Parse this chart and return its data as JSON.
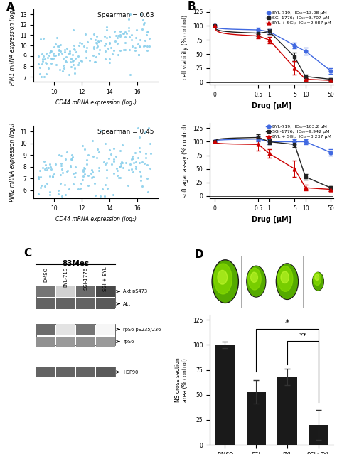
{
  "panel_A_top": {
    "title": "Spearman = 0.63",
    "xlabel": "CD44 mRNA expression (log₂)",
    "ylabel": "PIM1 mRNA expression (log₂)",
    "xlim": [
      8.5,
      17.5
    ],
    "ylim": [
      6.5,
      13.5
    ],
    "xticks": [
      10,
      12,
      14,
      16
    ],
    "yticks": [
      7,
      8,
      9,
      10,
      11,
      12,
      13
    ],
    "dot_color": "#87CEEB",
    "seed": 42,
    "n_points": 180
  },
  "panel_A_bot": {
    "title": "Spearman = 0.45",
    "xlabel": "CD44 mRNA expression (log₂)",
    "ylabel": "PIM2 mRNA expression (log₂)",
    "xlim": [
      8.5,
      17.5
    ],
    "ylim": [
      5.3,
      11.5
    ],
    "xticks": [
      10,
      12,
      14,
      16
    ],
    "yticks": [
      6,
      7,
      8,
      9,
      10,
      11
    ],
    "dot_color": "#87CEEB",
    "seed": 43,
    "n_points": 160
  },
  "panel_B_top": {
    "ylabel": "cell viability (% control)",
    "xlabel": "Drug [μM]",
    "xvals": [
      0,
      0.5,
      1,
      5,
      10,
      50
    ],
    "BYL_mean": [
      100,
      93,
      90,
      65,
      55,
      20
    ],
    "BYL_err": [
      2,
      4,
      4,
      5,
      6,
      5
    ],
    "SGI_mean": [
      100,
      87,
      90,
      45,
      10,
      5
    ],
    "SGI_err": [
      2,
      5,
      4,
      8,
      3,
      2
    ],
    "BYLSGI_mean": [
      100,
      82,
      75,
      25,
      5,
      3
    ],
    "BYLSGI_err": [
      2,
      4,
      6,
      12,
      2,
      1
    ],
    "BYL_label": "BYL-719;  IC₅₀=13.08 μM",
    "SGI_label": "SGI-1776;  IC₅₀=3.707 μM",
    "BYLSGI_label": "BYL + SGI;  IC₅₀=2.087 μM",
    "BYL_color": "#4169E1",
    "SGI_color": "#222222",
    "BYLSGI_color": "#CC0000",
    "ylim": [
      -5,
      130
    ],
    "yticks": [
      0,
      25,
      50,
      75,
      100,
      125
    ]
  },
  "panel_B_bot": {
    "ylabel": "soft agar assay (% control)",
    "xlabel": "Drug [μM]",
    "xvals": [
      0,
      0.5,
      1,
      5,
      10,
      50
    ],
    "BYL_mean": [
      100,
      105,
      100,
      100,
      100,
      80
    ],
    "BYL_err": [
      2,
      5,
      4,
      5,
      4,
      6
    ],
    "SGI_mean": [
      100,
      108,
      100,
      95,
      35,
      15
    ],
    "SGI_err": [
      2,
      6,
      4,
      5,
      5,
      3
    ],
    "BYLSGI_mean": [
      100,
      95,
      78,
      50,
      15,
      12
    ],
    "BYLSGI_err": [
      2,
      12,
      8,
      15,
      5,
      3
    ],
    "BYL_label": "BYL-719;  IC₅₀=103.2 μM",
    "SGI_label": "SGI-1776;  IC₅₀=9.942 μM",
    "BYLSGI_label": "BYL + SGI;  IC₅₀=3.237 μM",
    "BYL_color": "#4169E1",
    "SGI_color": "#222222",
    "BYLSGI_color": "#CC0000",
    "ylim": [
      -5,
      135
    ],
    "yticks": [
      0,
      25,
      50,
      75,
      100,
      125
    ]
  },
  "panel_C": {
    "title": "83Mes",
    "labels": [
      "DMSO",
      "BYL-719",
      "SGI-1776",
      "SGI + BYL"
    ],
    "bands": [
      {
        "name": "Akt pS473",
        "intensities": [
          0.75,
          0.25,
          0.8,
          1.0
        ],
        "group": 0
      },
      {
        "name": "Akt",
        "intensities": [
          0.85,
          0.85,
          0.85,
          0.9
        ],
        "group": 0
      },
      {
        "name": "rpS6 pS235/236",
        "intensities": [
          0.8,
          0.15,
          0.75,
          0.05
        ],
        "group": 1
      },
      {
        "name": "rpS6",
        "intensities": [
          0.6,
          0.55,
          0.6,
          0.55
        ],
        "group": 1
      },
      {
        "name": "HSP90",
        "intensities": [
          0.85,
          0.85,
          0.85,
          0.9
        ],
        "group": 2
      }
    ]
  },
  "panel_D": {
    "categories": [
      "DMSO",
      "SGI",
      "BYL",
      "SGI+BYL"
    ],
    "values": [
      100,
      53,
      68,
      20
    ],
    "errors": [
      3,
      12,
      8,
      15
    ],
    "bar_color": "#1a1a1a",
    "ylabel": "NS cross section\narea (% control)",
    "ylim": [
      0,
      130
    ],
    "yticks": [
      0,
      25,
      50,
      75,
      100,
      125
    ],
    "spheroid_sizes": [
      0.9,
      0.65,
      0.75,
      0.38
    ]
  }
}
